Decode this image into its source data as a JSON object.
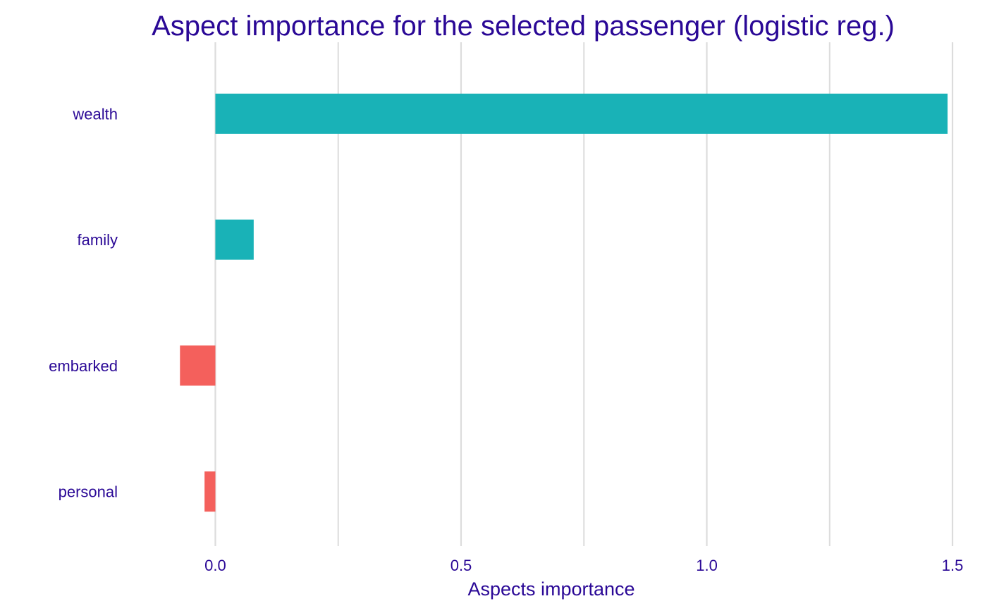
{
  "chart_data": {
    "type": "bar",
    "orientation": "horizontal",
    "title": "Aspect importance for the selected passenger (logistic reg.)",
    "xlabel": "Aspects importance",
    "ylabel": "",
    "categories": [
      "wealth",
      "family",
      "embarked",
      "personal"
    ],
    "values": [
      1.49,
      0.078,
      -0.072,
      -0.022
    ],
    "xlim": [
      -0.18,
      1.52
    ],
    "xticks": [
      0.0,
      0.5,
      1.0,
      1.5
    ],
    "xtick_labels": [
      "0.0",
      "0.5",
      "1.0",
      "1.5"
    ],
    "grid": "vertical major and minor lines",
    "legend": "none",
    "colors": {
      "positive": "#19b2b7",
      "negative": "#f4605c",
      "text": "#2a0896",
      "grid": "#dcdcdc",
      "background": "#ffffff"
    }
  }
}
